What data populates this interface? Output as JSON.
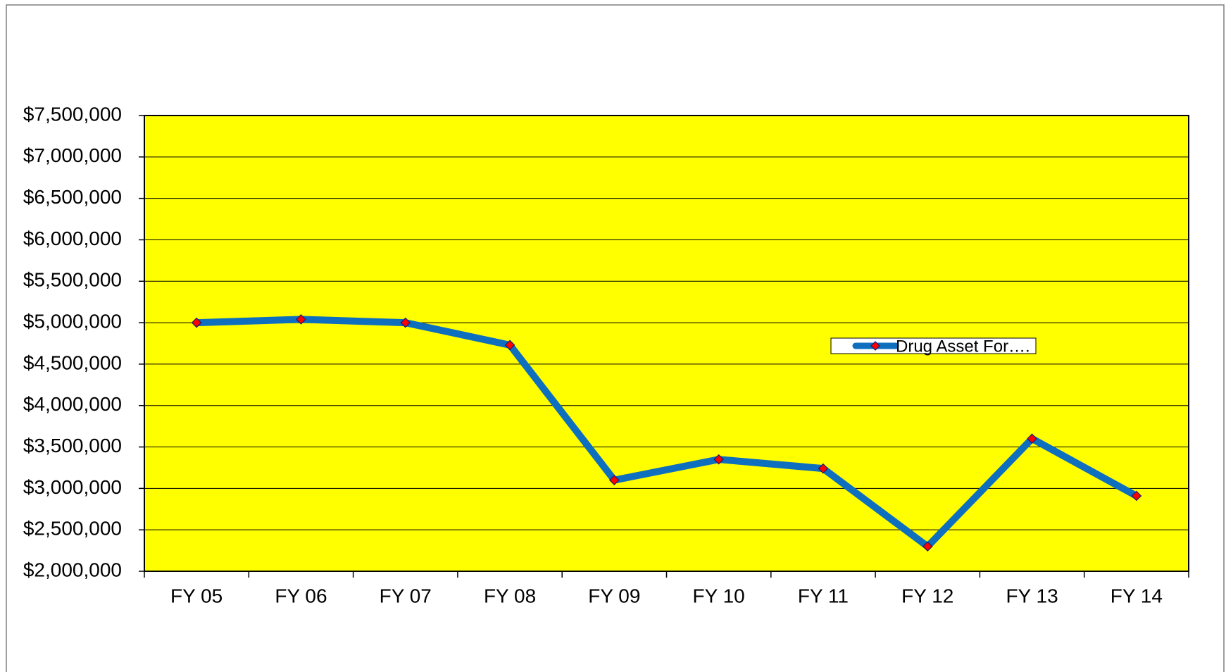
{
  "chart_data": {
    "type": "line",
    "categories": [
      "FY 05",
      "FY 06",
      "FY 07",
      "FY 08",
      "FY 09",
      "FY 10",
      "FY 11",
      "FY 12",
      "FY 13",
      "FY 14"
    ],
    "series": [
      {
        "name": "Drug Asset For….",
        "color": "#0f6fbf",
        "marker_color": "#ff0000",
        "values": [
          5000000,
          5040000,
          5000000,
          4730000,
          3100000,
          3350000,
          3240000,
          2300000,
          3600000,
          2910000
        ]
      }
    ],
    "ylim": [
      2000000,
      7500000
    ],
    "yticks": [
      {
        "value": 2000000,
        "label": "$2,000,000"
      },
      {
        "value": 2500000,
        "label": "$2,500,000"
      },
      {
        "value": 3000000,
        "label": "$3,000,000"
      },
      {
        "value": 3500000,
        "label": "$3,500,000"
      },
      {
        "value": 4000000,
        "label": "$4,000,000"
      },
      {
        "value": 4500000,
        "label": "$4,500,000"
      },
      {
        "value": 5000000,
        "label": "$5,000,000"
      },
      {
        "value": 5500000,
        "label": "$5,500,000"
      },
      {
        "value": 6000000,
        "label": "$6,000,000"
      },
      {
        "value": 6500000,
        "label": "$6,500,000"
      },
      {
        "value": 7000000,
        "label": "$7,000,000"
      },
      {
        "value": 7500000,
        "label": "$7,500,000"
      }
    ],
    "grid": true,
    "plot_background": "#ffff00",
    "legend_position": "right"
  }
}
